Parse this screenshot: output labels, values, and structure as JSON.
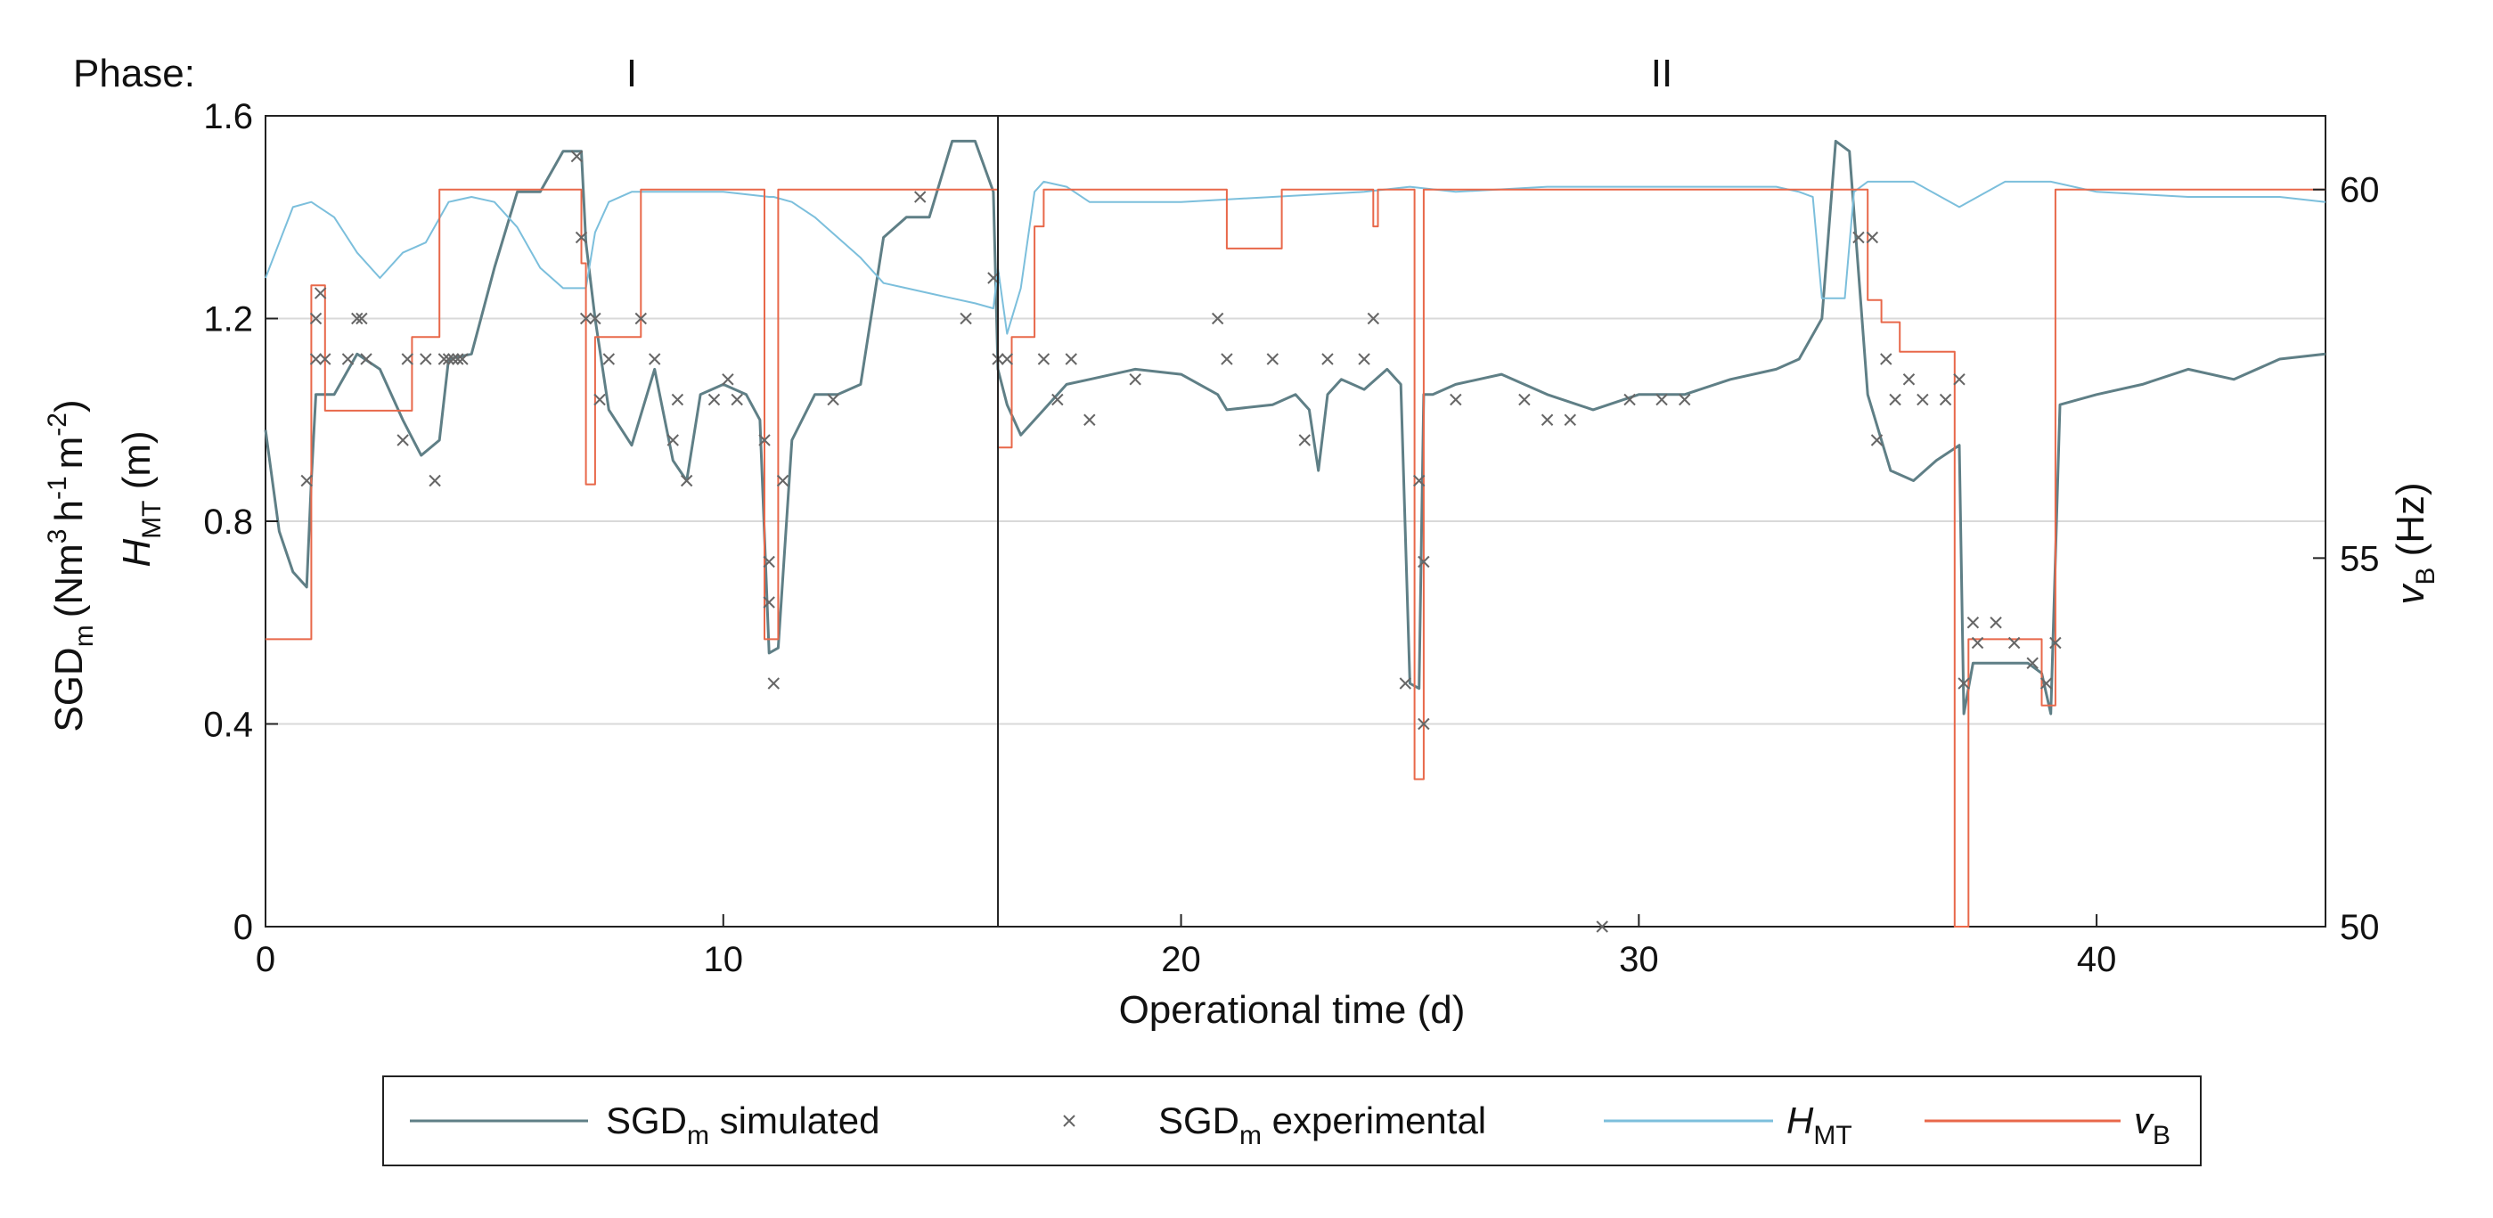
{
  "chart_data": {
    "type": "line",
    "phase": {
      "label": "Phase:",
      "phases": [
        {
          "name": "I",
          "x": 8
        },
        {
          "name": "II",
          "x": 30.5
        }
      ],
      "boundary_x": 16
    },
    "xlabel": "Operational time (d)",
    "xlim": [
      0,
      45
    ],
    "xticks": [
      0,
      10,
      20,
      30,
      40
    ],
    "ylabel_left_main": "SGD",
    "ylabel_left_main_sub": "m",
    "ylabel_left_units": "(Nm",
    "ylabel_left_units2": "h",
    "ylabel_left_units3": "m",
    "ylabel_left_units_end": ")",
    "ylabel_left_sup3": "3",
    "ylabel_left_supm1": "-1",
    "ylabel_left_supm2": "-2",
    "ylabel_left_second": "H",
    "ylabel_left_second_sub": "MT",
    "ylabel_left_second_units": " (m)",
    "ylim_left": [
      0,
      1.6
    ],
    "yticks_left": [
      "0",
      "0.4",
      "0.8",
      "1.2",
      "1.6"
    ],
    "ylabel_right": "v",
    "ylabel_right_sub": "B",
    "ylabel_right_units": " (Hz)",
    "ylim_right": [
      50,
      61
    ],
    "yticks_right": [
      "50",
      "55",
      "60"
    ],
    "gridlines_y": [
      0.4,
      0.8,
      1.2
    ],
    "legend": [
      {
        "label": "SGD",
        "sub": "m",
        "suffix": " simulated",
        "color": "#5f7f86",
        "kind": "line"
      },
      {
        "label": "SGD",
        "sub": "m",
        "suffix": " experimental",
        "color": "#666666",
        "kind": "marker"
      },
      {
        "label": "H",
        "sub": "MT",
        "suffix": "",
        "color": "#7cbfdc",
        "kind": "line"
      },
      {
        "label": "v",
        "sub": "B",
        "suffix": "",
        "color": "#e8684a",
        "kind": "line"
      }
    ],
    "series": [
      {
        "name": "SGDm simulated",
        "color": "#5f7f86",
        "x": [
          0,
          0.3,
          0.6,
          0.9,
          1.0,
          1.1,
          1.5,
          2.0,
          2.5,
          3.0,
          3.4,
          3.8,
          4.0,
          4.5,
          5.0,
          5.5,
          6.0,
          6.5,
          6.9,
          7.0,
          7.2,
          7.5,
          8.0,
          8.5,
          8.9,
          9.2,
          9.5,
          10.0,
          10.5,
          10.8,
          11.0,
          11.2,
          11.5,
          12.0,
          12.5,
          13.0,
          13.5,
          14.0,
          14.5,
          15.0,
          15.5,
          15.9,
          16.0,
          16.2,
          16.5,
          17.0,
          17.5,
          18.0,
          19.0,
          20.0,
          20.8,
          21.0,
          22.0,
          22.5,
          22.8,
          23.0,
          23.2,
          23.5,
          24.0,
          24.5,
          24.8,
          25.0,
          25.2,
          25.3,
          25.5,
          26.0,
          27.0,
          28.0,
          29.0,
          30.0,
          31.0,
          32.0,
          33.0,
          33.5,
          34.0,
          34.3,
          34.6,
          35.0,
          35.5,
          36.0,
          36.5,
          37.0,
          37.1,
          37.3,
          37.6,
          38.0,
          38.5,
          38.8,
          39.0,
          39.2,
          40.0,
          41.0,
          42.0,
          43.0,
          44.0,
          45.0
        ],
        "y": [
          0.98,
          0.78,
          0.7,
          0.67,
          0.88,
          1.05,
          1.05,
          1.13,
          1.1,
          1.0,
          0.93,
          0.96,
          1.12,
          1.13,
          1.3,
          1.45,
          1.45,
          1.53,
          1.53,
          1.35,
          1.2,
          1.02,
          0.95,
          1.1,
          0.92,
          0.88,
          1.05,
          1.07,
          1.05,
          1.0,
          0.54,
          0.55,
          0.96,
          1.05,
          1.05,
          1.07,
          1.36,
          1.4,
          1.4,
          1.55,
          1.55,
          1.45,
          1.1,
          1.03,
          0.97,
          1.02,
          1.07,
          1.08,
          1.1,
          1.09,
          1.05,
          1.02,
          1.03,
          1.05,
          1.02,
          0.9,
          1.05,
          1.08,
          1.06,
          1.1,
          1.07,
          0.48,
          0.47,
          1.05,
          1.05,
          1.07,
          1.09,
          1.05,
          1.02,
          1.05,
          1.05,
          1.08,
          1.1,
          1.12,
          1.2,
          1.55,
          1.53,
          1.05,
          0.9,
          0.88,
          0.92,
          0.95,
          0.42,
          0.52,
          0.52,
          0.52,
          0.52,
          0.5,
          0.42,
          1.03,
          1.05,
          1.07,
          1.1,
          1.08,
          1.12,
          1.13
        ]
      },
      {
        "name": "HMT",
        "color": "#7cbfdc",
        "x": [
          0,
          0.3,
          0.6,
          1.0,
          1.5,
          2.0,
          2.5,
          3.0,
          3.5,
          4.0,
          4.5,
          5.0,
          5.5,
          6.0,
          6.5,
          7.0,
          7.2,
          7.5,
          8.0,
          9.0,
          10.0,
          11.0,
          11.1,
          11.5,
          12.0,
          13.0,
          13.5,
          14.0,
          14.5,
          15.0,
          15.5,
          15.9,
          16.0,
          16.2,
          16.5,
          16.8,
          17.0,
          17.5,
          18.0,
          20.0,
          22.0,
          24.0,
          25.0,
          26.0,
          28.0,
          30.0,
          32.0,
          33.0,
          33.5,
          33.8,
          34.0,
          34.5,
          34.7,
          35.0,
          36.0,
          37.0,
          38.0,
          39.0,
          40.0,
          42.0,
          44.0,
          45.0
        ],
        "y": [
          1.28,
          1.35,
          1.42,
          1.43,
          1.4,
          1.33,
          1.28,
          1.33,
          1.35,
          1.43,
          1.44,
          1.43,
          1.38,
          1.3,
          1.26,
          1.26,
          1.37,
          1.43,
          1.45,
          1.45,
          1.45,
          1.44,
          1.44,
          1.43,
          1.4,
          1.32,
          1.27,
          1.26,
          1.25,
          1.24,
          1.23,
          1.22,
          1.3,
          1.17,
          1.26,
          1.45,
          1.47,
          1.46,
          1.43,
          1.43,
          1.44,
          1.45,
          1.46,
          1.45,
          1.46,
          1.46,
          1.46,
          1.46,
          1.45,
          1.44,
          1.24,
          1.24,
          1.45,
          1.47,
          1.47,
          1.42,
          1.47,
          1.47,
          1.45,
          1.44,
          1.44,
          1.43
        ]
      },
      {
        "name": "vB",
        "color": "#e8684a",
        "x": [
          0,
          1.0,
          1.0,
          1.3,
          1.3,
          3.2,
          3.2,
          3.8,
          3.8,
          6.9,
          6.9,
          7.0,
          7.0,
          7.2,
          7.2,
          8.2,
          8.2,
          10.9,
          10.9,
          11.2,
          11.2,
          16.0,
          16.0,
          16.3,
          16.3,
          16.8,
          16.8,
          17.0,
          17.0,
          21.0,
          21.0,
          22.2,
          22.2,
          24.2,
          24.2,
          24.3,
          24.3,
          25.1,
          25.1,
          25.3,
          25.3,
          35.0,
          35.0,
          35.3,
          35.3,
          35.7,
          35.7,
          36.6,
          36.6,
          36.9,
          36.9,
          37.2,
          37.2,
          38.8,
          38.8,
          39.1,
          39.1,
          45.0
        ],
        "y": [
          53.9,
          53.9,
          58.7,
          58.7,
          57.0,
          57.0,
          58.0,
          58.0,
          60.0,
          60.0,
          59.0,
          59.0,
          56.0,
          56.0,
          58.0,
          58.0,
          60.0,
          60.0,
          53.9,
          53.9,
          60.0,
          60.0,
          56.5,
          56.5,
          58.0,
          58.0,
          59.5,
          59.5,
          60.0,
          60.0,
          59.2,
          59.2,
          60.0,
          60.0,
          59.5,
          59.5,
          60.0,
          60.0,
          52.0,
          52.0,
          60.0,
          60.0,
          58.5,
          58.5,
          58.2,
          58.2,
          57.8,
          57.8,
          57.8,
          57.8,
          50.0,
          50.0,
          53.9,
          53.9,
          53.0,
          53.0,
          60.0,
          60.0
        ]
      },
      {
        "name": "SGDm experimental",
        "color": "#666666",
        "type": "scatter",
        "x": [
          0.9,
          1.1,
          1.1,
          1.2,
          1.3,
          1.8,
          2.0,
          2.1,
          2.2,
          3.0,
          3.1,
          3.5,
          3.7,
          3.9,
          4.0,
          4.1,
          4.2,
          4.3,
          6.8,
          6.9,
          7.0,
          7.2,
          7.3,
          7.5,
          8.2,
          8.5,
          8.9,
          9.0,
          9.2,
          9.8,
          10.1,
          10.3,
          10.9,
          11.0,
          11.0,
          11.1,
          11.3,
          12.4,
          14.3,
          15.3,
          15.9,
          16.0,
          16.2,
          17.0,
          17.3,
          17.6,
          18.0,
          19.0,
          20.8,
          21.0,
          22.0,
          22.7,
          23.2,
          24.0,
          24.2,
          24.9,
          25.2,
          25.3,
          25.3,
          26.0,
          27.5,
          28.0,
          28.5,
          29.2,
          29.8,
          30.5,
          31.0,
          34.8,
          35.1,
          35.2,
          35.4,
          35.6,
          35.9,
          36.2,
          36.7,
          37.0,
          37.1,
          37.3,
          37.4,
          37.8,
          38.2,
          38.6,
          38.9,
          39.1
        ],
        "y": [
          0.88,
          1.12,
          1.2,
          1.25,
          1.12,
          1.12,
          1.2,
          1.2,
          1.12,
          0.96,
          1.12,
          1.12,
          0.88,
          1.12,
          1.12,
          1.12,
          1.12,
          1.12,
          1.52,
          1.36,
          1.2,
          1.2,
          1.04,
          1.12,
          1.2,
          1.12,
          0.96,
          1.04,
          0.88,
          1.04,
          1.08,
          1.04,
          0.96,
          0.72,
          0.64,
          0.48,
          0.88,
          1.04,
          1.44,
          1.2,
          1.28,
          1.12,
          1.12,
          1.12,
          1.04,
          1.12,
          1.0,
          1.08,
          1.2,
          1.12,
          1.12,
          0.96,
          1.12,
          1.12,
          1.2,
          0.48,
          0.88,
          0.72,
          0.4,
          1.04,
          1.04,
          1.0,
          1.0,
          0.0,
          1.04,
          1.04,
          1.04,
          1.36,
          1.36,
          0.96,
          1.12,
          1.04,
          1.08,
          1.04,
          1.04,
          1.08,
          0.48,
          0.6,
          0.56,
          0.6,
          0.56,
          0.52,
          0.48,
          0.56
        ]
      }
    ]
  }
}
